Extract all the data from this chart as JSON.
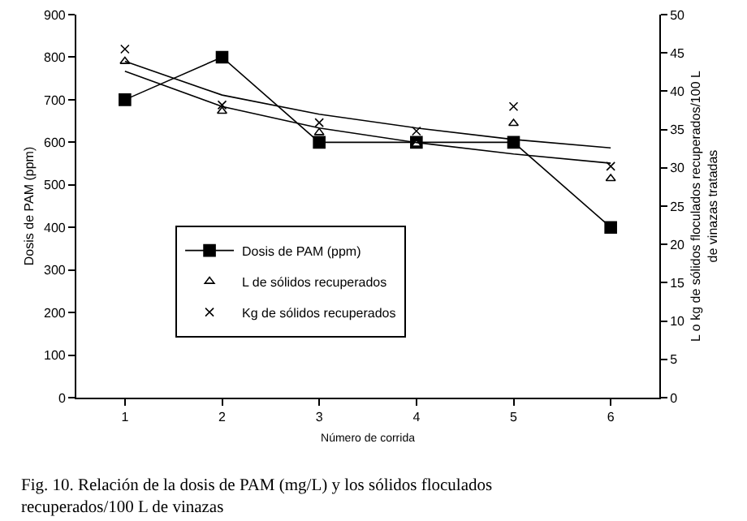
{
  "chart_data": {
    "type": "line",
    "xlabel": "Número de corrida",
    "ylabel": "Dosis de PAM (ppm)",
    "y2label": "L o kg de sólidos floculados recuperados/100 L de vinazas tratadas",
    "categories": [
      "1",
      "2",
      "3",
      "4",
      "5",
      "6"
    ],
    "ylim": [
      0,
      900
    ],
    "yticks": [
      0,
      100,
      200,
      300,
      400,
      500,
      600,
      700,
      800,
      900
    ],
    "y2lim": [
      0,
      50
    ],
    "y2ticks": [
      0,
      5,
      10,
      15,
      20,
      25,
      30,
      35,
      40,
      45,
      50
    ],
    "legend": "center",
    "series": [
      {
        "name": "Dosis de PAM (ppm)",
        "color": "#000000",
        "marker": "square",
        "line_style": "solid",
        "values": [
          700,
          800,
          600,
          600,
          600,
          400
        ]
      },
      {
        "name": "L de sólidos recuperados",
        "type": "scatter",
        "color": "#000000",
        "marker": "triangle",
        "axis": "y2",
        "values": [
          43.9,
          37.4,
          34.6,
          33.1,
          35.8,
          28.6
        ]
      },
      {
        "name": "Kg de sólidos recuperados",
        "type": "scatter",
        "color": "#000000",
        "marker": "cross",
        "axis": "y2",
        "values": [
          45.5,
          38.2,
          35.9,
          34.8,
          38.0,
          30.2
        ]
      },
      {
        "color": "#000000",
        "marker": "none",
        "line_style": "solid",
        "axis": "y2",
        "values": [
          42.6,
          38.0,
          35.2,
          33.3,
          31.8,
          30.6
        ]
      },
      {
        "color": "#000000",
        "marker": "none",
        "line_style": "solid",
        "axis": "y2",
        "values": [
          43.9,
          39.5,
          37.0,
          35.2,
          33.7,
          32.6
        ]
      }
    ],
    "annotations": [
      "Fig. 10. Relación de la dosis de PAM (mg/L) y los sólidos floculados recuperados/100 L de vinazas"
    ]
  }
}
